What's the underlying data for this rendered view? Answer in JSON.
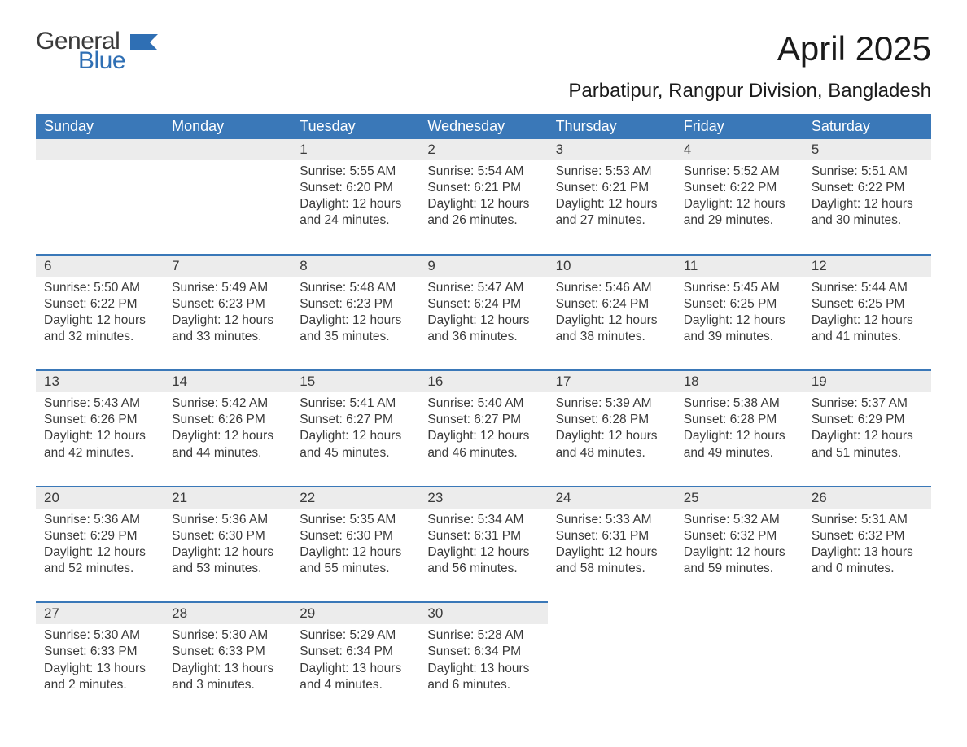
{
  "brand": {
    "word1": "General",
    "word2": "Blue"
  },
  "colors": {
    "header_bg": "#3a78b8",
    "header_text": "#ffffff",
    "daynum_bg": "#ececec",
    "body_text": "#3a3a3a",
    "rule": "#3a78b8",
    "brand_blue": "#2f6fb4",
    "page_bg": "#ffffff"
  },
  "typography": {
    "title_pt": 42,
    "location_pt": 24,
    "header_pt": 18,
    "daynum_pt": 17,
    "body_pt": 15.5,
    "logo_pt": 30
  },
  "title": "April 2025",
  "location": "Parbatipur, Rangpur Division, Bangladesh",
  "weekdays": [
    "Sunday",
    "Monday",
    "Tuesday",
    "Wednesday",
    "Thursday",
    "Friday",
    "Saturday"
  ],
  "weeks": [
    [
      {
        "day": "",
        "sunrise": "",
        "sunset": "",
        "daylight1": "",
        "daylight2": ""
      },
      {
        "day": "",
        "sunrise": "",
        "sunset": "",
        "daylight1": "",
        "daylight2": ""
      },
      {
        "day": "1",
        "sunrise": "Sunrise: 5:55 AM",
        "sunset": "Sunset: 6:20 PM",
        "daylight1": "Daylight: 12 hours",
        "daylight2": "and 24 minutes."
      },
      {
        "day": "2",
        "sunrise": "Sunrise: 5:54 AM",
        "sunset": "Sunset: 6:21 PM",
        "daylight1": "Daylight: 12 hours",
        "daylight2": "and 26 minutes."
      },
      {
        "day": "3",
        "sunrise": "Sunrise: 5:53 AM",
        "sunset": "Sunset: 6:21 PM",
        "daylight1": "Daylight: 12 hours",
        "daylight2": "and 27 minutes."
      },
      {
        "day": "4",
        "sunrise": "Sunrise: 5:52 AM",
        "sunset": "Sunset: 6:22 PM",
        "daylight1": "Daylight: 12 hours",
        "daylight2": "and 29 minutes."
      },
      {
        "day": "5",
        "sunrise": "Sunrise: 5:51 AM",
        "sunset": "Sunset: 6:22 PM",
        "daylight1": "Daylight: 12 hours",
        "daylight2": "and 30 minutes."
      }
    ],
    [
      {
        "day": "6",
        "sunrise": "Sunrise: 5:50 AM",
        "sunset": "Sunset: 6:22 PM",
        "daylight1": "Daylight: 12 hours",
        "daylight2": "and 32 minutes."
      },
      {
        "day": "7",
        "sunrise": "Sunrise: 5:49 AM",
        "sunset": "Sunset: 6:23 PM",
        "daylight1": "Daylight: 12 hours",
        "daylight2": "and 33 minutes."
      },
      {
        "day": "8",
        "sunrise": "Sunrise: 5:48 AM",
        "sunset": "Sunset: 6:23 PM",
        "daylight1": "Daylight: 12 hours",
        "daylight2": "and 35 minutes."
      },
      {
        "day": "9",
        "sunrise": "Sunrise: 5:47 AM",
        "sunset": "Sunset: 6:24 PM",
        "daylight1": "Daylight: 12 hours",
        "daylight2": "and 36 minutes."
      },
      {
        "day": "10",
        "sunrise": "Sunrise: 5:46 AM",
        "sunset": "Sunset: 6:24 PM",
        "daylight1": "Daylight: 12 hours",
        "daylight2": "and 38 minutes."
      },
      {
        "day": "11",
        "sunrise": "Sunrise: 5:45 AM",
        "sunset": "Sunset: 6:25 PM",
        "daylight1": "Daylight: 12 hours",
        "daylight2": "and 39 minutes."
      },
      {
        "day": "12",
        "sunrise": "Sunrise: 5:44 AM",
        "sunset": "Sunset: 6:25 PM",
        "daylight1": "Daylight: 12 hours",
        "daylight2": "and 41 minutes."
      }
    ],
    [
      {
        "day": "13",
        "sunrise": "Sunrise: 5:43 AM",
        "sunset": "Sunset: 6:26 PM",
        "daylight1": "Daylight: 12 hours",
        "daylight2": "and 42 minutes."
      },
      {
        "day": "14",
        "sunrise": "Sunrise: 5:42 AM",
        "sunset": "Sunset: 6:26 PM",
        "daylight1": "Daylight: 12 hours",
        "daylight2": "and 44 minutes."
      },
      {
        "day": "15",
        "sunrise": "Sunrise: 5:41 AM",
        "sunset": "Sunset: 6:27 PM",
        "daylight1": "Daylight: 12 hours",
        "daylight2": "and 45 minutes."
      },
      {
        "day": "16",
        "sunrise": "Sunrise: 5:40 AM",
        "sunset": "Sunset: 6:27 PM",
        "daylight1": "Daylight: 12 hours",
        "daylight2": "and 46 minutes."
      },
      {
        "day": "17",
        "sunrise": "Sunrise: 5:39 AM",
        "sunset": "Sunset: 6:28 PM",
        "daylight1": "Daylight: 12 hours",
        "daylight2": "and 48 minutes."
      },
      {
        "day": "18",
        "sunrise": "Sunrise: 5:38 AM",
        "sunset": "Sunset: 6:28 PM",
        "daylight1": "Daylight: 12 hours",
        "daylight2": "and 49 minutes."
      },
      {
        "day": "19",
        "sunrise": "Sunrise: 5:37 AM",
        "sunset": "Sunset: 6:29 PM",
        "daylight1": "Daylight: 12 hours",
        "daylight2": "and 51 minutes."
      }
    ],
    [
      {
        "day": "20",
        "sunrise": "Sunrise: 5:36 AM",
        "sunset": "Sunset: 6:29 PM",
        "daylight1": "Daylight: 12 hours",
        "daylight2": "and 52 minutes."
      },
      {
        "day": "21",
        "sunrise": "Sunrise: 5:36 AM",
        "sunset": "Sunset: 6:30 PM",
        "daylight1": "Daylight: 12 hours",
        "daylight2": "and 53 minutes."
      },
      {
        "day": "22",
        "sunrise": "Sunrise: 5:35 AM",
        "sunset": "Sunset: 6:30 PM",
        "daylight1": "Daylight: 12 hours",
        "daylight2": "and 55 minutes."
      },
      {
        "day": "23",
        "sunrise": "Sunrise: 5:34 AM",
        "sunset": "Sunset: 6:31 PM",
        "daylight1": "Daylight: 12 hours",
        "daylight2": "and 56 minutes."
      },
      {
        "day": "24",
        "sunrise": "Sunrise: 5:33 AM",
        "sunset": "Sunset: 6:31 PM",
        "daylight1": "Daylight: 12 hours",
        "daylight2": "and 58 minutes."
      },
      {
        "day": "25",
        "sunrise": "Sunrise: 5:32 AM",
        "sunset": "Sunset: 6:32 PM",
        "daylight1": "Daylight: 12 hours",
        "daylight2": "and 59 minutes."
      },
      {
        "day": "26",
        "sunrise": "Sunrise: 5:31 AM",
        "sunset": "Sunset: 6:32 PM",
        "daylight1": "Daylight: 13 hours",
        "daylight2": "and 0 minutes."
      }
    ],
    [
      {
        "day": "27",
        "sunrise": "Sunrise: 5:30 AM",
        "sunset": "Sunset: 6:33 PM",
        "daylight1": "Daylight: 13 hours",
        "daylight2": "and 2 minutes."
      },
      {
        "day": "28",
        "sunrise": "Sunrise: 5:30 AM",
        "sunset": "Sunset: 6:33 PM",
        "daylight1": "Daylight: 13 hours",
        "daylight2": "and 3 minutes."
      },
      {
        "day": "29",
        "sunrise": "Sunrise: 5:29 AM",
        "sunset": "Sunset: 6:34 PM",
        "daylight1": "Daylight: 13 hours",
        "daylight2": "and 4 minutes."
      },
      {
        "day": "30",
        "sunrise": "Sunrise: 5:28 AM",
        "sunset": "Sunset: 6:34 PM",
        "daylight1": "Daylight: 13 hours",
        "daylight2": "and 6 minutes."
      },
      {
        "day": "",
        "sunrise": "",
        "sunset": "",
        "daylight1": "",
        "daylight2": ""
      },
      {
        "day": "",
        "sunrise": "",
        "sunset": "",
        "daylight1": "",
        "daylight2": ""
      },
      {
        "day": "",
        "sunrise": "",
        "sunset": "",
        "daylight1": "",
        "daylight2": ""
      }
    ]
  ]
}
